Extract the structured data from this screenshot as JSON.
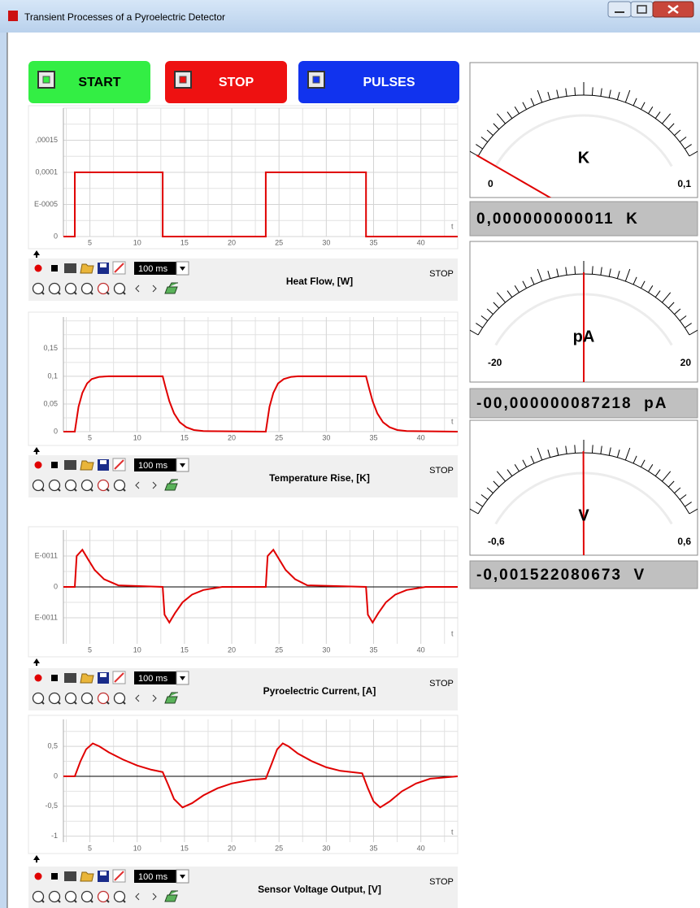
{
  "window": {
    "title": "Transient Processes of a Pyroelectric Detector"
  },
  "buttons": [
    "START",
    "STOP",
    "PULSES"
  ],
  "plots": [
    {
      "type": "line",
      "title": "Heat Flow, [W]",
      "status": "STOP",
      "interval": "100 ms",
      "x_label": "t",
      "color": "#e00000",
      "xlim": [
        2.2,
        43.9
      ],
      "xticks": [
        5,
        10,
        15,
        20,
        25,
        30,
        35,
        40
      ],
      "ylim": [
        0,
        0.0002
      ],
      "yticks": [
        0,
        {
          "value": 5e-05,
          "label": "E-0005"
        },
        {
          "value": 0.0001,
          "label": "0,0001"
        },
        {
          "value": 0.00015,
          "label": ",00015"
        }
      ],
      "x": [
        2.2,
        3.4,
        3.4,
        12.7,
        12.7,
        23.6,
        23.6,
        34.2,
        34.2,
        43.9
      ],
      "y": [
        0,
        0,
        0.0001,
        0.0001,
        0,
        0,
        0.0001,
        0.0001,
        0,
        0
      ]
    },
    {
      "type": "line",
      "title": "Temperature Rise, [K]",
      "status": "STOP",
      "interval": "100 ms",
      "x_label": "t",
      "color": "#e00000",
      "xlim": [
        2.2,
        43.9
      ],
      "xticks": [
        5,
        10,
        15,
        20,
        25,
        30,
        35,
        40
      ],
      "ylim": [
        0,
        0.207
      ],
      "yticks": [
        0,
        {
          "value": 0.05,
          "label": "0,05"
        },
        {
          "value": 0.1,
          "label": "0,1"
        },
        {
          "value": 0.15,
          "label": "0,15"
        }
      ],
      "x": [
        2.2,
        3.4,
        3.8,
        4.2,
        4.7,
        5.2,
        6,
        7,
        12.7,
        13,
        13.4,
        13.9,
        14.5,
        15.2,
        16,
        17,
        23.6,
        24,
        24.4,
        24.9,
        25.5,
        26.3,
        27,
        34.2,
        34.5,
        34.9,
        35.4,
        36,
        36.7,
        37.5,
        38.5,
        43.9
      ],
      "y": [
        0,
        0,
        0.045,
        0.07,
        0.087,
        0.095,
        0.099,
        0.1,
        0.1,
        0.08,
        0.055,
        0.033,
        0.017,
        0.008,
        0.003,
        0.001,
        0,
        0.045,
        0.07,
        0.087,
        0.095,
        0.099,
        0.1,
        0.1,
        0.08,
        0.055,
        0.033,
        0.017,
        0.008,
        0.003,
        0.001,
        0
      ]
    },
    {
      "type": "line",
      "title": "Pyroelectric Current, [A]",
      "status": "STOP",
      "interval": "100 ms",
      "x_label": "t",
      "color": "#e00000",
      "xlim": [
        2.2,
        43.9
      ],
      "xticks": [
        5,
        10,
        15,
        20,
        25,
        30,
        35,
        40
      ],
      "ylim": [
        -1.84e-11,
        1.84e-11
      ],
      "yticks": [
        {
          "value": -1e-11,
          "label": "E-0011"
        },
        0,
        {
          "value": 1e-11,
          "label": "E-0011"
        }
      ],
      "x": [
        2.2,
        3.4,
        3.6,
        4.2,
        4.8,
        5.5,
        6.5,
        8,
        12.7,
        12.9,
        13.4,
        14,
        14.8,
        15.8,
        17,
        19,
        23.6,
        23.8,
        24.4,
        25,
        25.7,
        26.7,
        28,
        34.2,
        34.4,
        34.9,
        35.5,
        36.3,
        37.3,
        38.5,
        40.5,
        43.9
      ],
      "y": [
        0,
        0,
        1e-11,
        1.2e-11,
        9e-12,
        5.5e-12,
        2.5e-12,
        5e-13,
        0,
        -9e-12,
        -1.15e-11,
        -8.5e-12,
        -5e-12,
        -2.5e-12,
        -1e-12,
        0,
        0,
        1e-11,
        1.2e-11,
        9e-12,
        5.5e-12,
        2.5e-12,
        5e-13,
        0,
        -9e-12,
        -1.15e-11,
        -8.5e-12,
        -5e-12,
        -2.5e-12,
        -1e-12,
        0,
        0
      ]
    },
    {
      "type": "line",
      "title": "Sensor Voltage Output, [V]",
      "status": "STOP",
      "interval": "100 ms",
      "x_label": "t",
      "color": "#e00000",
      "xlim": [
        2.2,
        43.9
      ],
      "xticks": [
        5,
        10,
        15,
        20,
        25,
        30,
        35,
        40
      ],
      "ylim": [
        -1.1,
        0.95
      ],
      "yticks": [
        -1,
        {
          "value": -0.5,
          "label": "-0,5"
        },
        0,
        {
          "value": 0.5,
          "label": "0,5"
        }
      ],
      "x": [
        2.2,
        3.4,
        4,
        4.6,
        5.3,
        6,
        7,
        8.5,
        10,
        11.5,
        12.7,
        13.3,
        13.9,
        14.8,
        15.8,
        17,
        18.5,
        20,
        22,
        23.6,
        24.2,
        24.8,
        25.4,
        26,
        27,
        28.5,
        30,
        31.5,
        33.8,
        34.4,
        35,
        35.7,
        36.7,
        38,
        39.5,
        41,
        43.9
      ],
      "y": [
        0,
        0,
        0.25,
        0.45,
        0.55,
        0.5,
        0.4,
        0.28,
        0.18,
        0.11,
        0.07,
        -0.15,
        -0.38,
        -0.52,
        -0.45,
        -0.32,
        -0.2,
        -0.12,
        -0.06,
        -0.04,
        0.2,
        0.45,
        0.55,
        0.5,
        0.38,
        0.25,
        0.15,
        0.09,
        0.05,
        -0.2,
        -0.42,
        -0.52,
        -0.42,
        -0.25,
        -0.12,
        -0.04,
        0
      ]
    }
  ],
  "meters": [
    {
      "unit": "K",
      "min": 0,
      "max": {
        "value": 0.1,
        "label": "0,1"
      },
      "value": 1.1e-11,
      "readout": "0,000000000011  K"
    },
    {
      "unit": "pA",
      "min": -20,
      "max": 20,
      "value": -8.7218e-08,
      "readout": "-00,000000087218  pA"
    },
    {
      "unit": "V",
      "min": {
        "value": -0.6,
        "label": "-0,6"
      },
      "max": {
        "value": 0.6,
        "label": "0,6"
      },
      "value": -0.001522080673,
      "readout": "-0,001522080673  V"
    }
  ]
}
